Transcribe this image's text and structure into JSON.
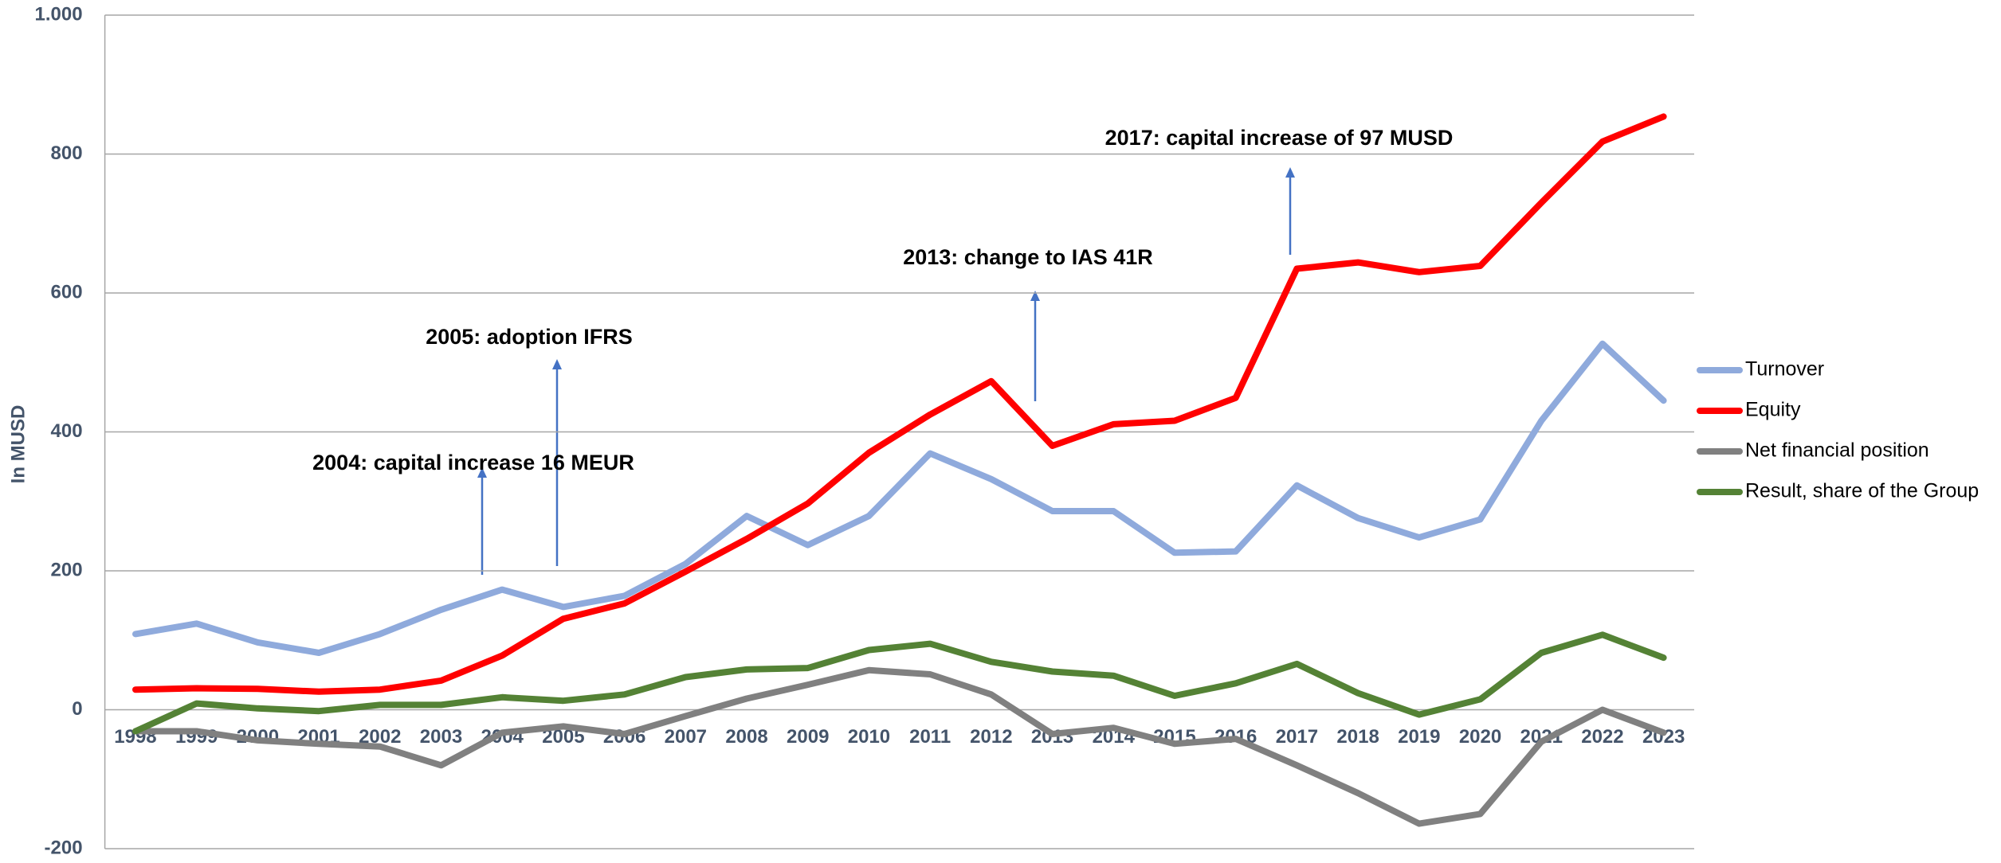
{
  "chart_data": {
    "type": "line",
    "y_label": "In MUSD",
    "categories": [
      "1998",
      "1999",
      "2000",
      "2001",
      "2002",
      "2003",
      "2004",
      "2005",
      "2006",
      "2007",
      "2008",
      "2009",
      "2010",
      "2011",
      "2012",
      "2013",
      "2014",
      "2015",
      "2016",
      "2017",
      "2018",
      "2019",
      "2020",
      "2021",
      "2022",
      "2023"
    ],
    "series": [
      {
        "name": "Turnover",
        "color": "#8faadc",
        "values": [
          109,
          124,
          97,
          82,
          109,
          144,
          173,
          148,
          164,
          210,
          279,
          237,
          279,
          369,
          332,
          286,
          286,
          226,
          228,
          323,
          276,
          248,
          274,
          416,
          527,
          445
        ]
      },
      {
        "name": "Equity",
        "color": "#ff0000",
        "values": [
          29,
          31,
          30,
          26,
          29,
          42,
          78,
          131,
          153,
          199,
          246,
          297,
          370,
          425,
          473,
          380,
          411,
          416,
          449,
          635,
          644,
          630,
          639,
          730,
          818,
          854
        ]
      },
      {
        "name": "Net financial position",
        "color": "#808080",
        "values": [
          -31,
          -31,
          -44,
          -49,
          -53,
          -80,
          -33,
          -24,
          -35,
          -9,
          16,
          36,
          57,
          51,
          22,
          -35,
          -26,
          -49,
          -42,
          -80,
          -120,
          -164,
          -150,
          -46,
          0,
          -33
        ]
      },
      {
        "name": "Result, share of the Group",
        "color": "#548235",
        "values": [
          -31,
          9,
          2,
          -2,
          7,
          7,
          18,
          13,
          22,
          47,
          58,
          60,
          86,
          95,
          69,
          55,
          49,
          20,
          38,
          66,
          24,
          -7,
          15,
          82,
          108,
          75
        ]
      }
    ],
    "ylim": [
      -200,
      1000
    ],
    "yticks": [
      -200,
      0,
      200,
      400,
      600,
      800,
      {
        "value": 1000,
        "label": "1.000"
      }
    ],
    "grid": true,
    "legend": "right",
    "annotations": [
      "2004: capital increase 16 MEUR",
      "2005: adoption IFRS",
      "2013: change to IAS 41R",
      "2017: capital increase of 97 MUSD"
    ]
  }
}
